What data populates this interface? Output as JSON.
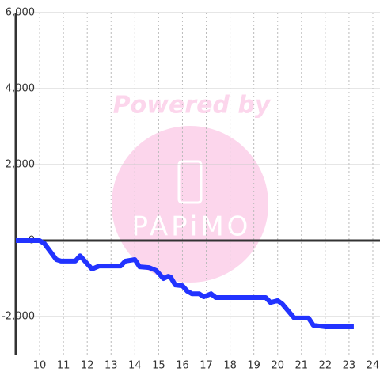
{
  "chart_data": {
    "type": "line",
    "watermark": [
      "Powered by",
      "PAPiMO"
    ],
    "x": [
      9,
      10.0,
      10.2,
      10.7,
      10.9,
      11.5,
      11.7,
      12.2,
      12.5,
      13.4,
      13.6,
      14.0,
      14.2,
      14.6,
      14.9,
      15.2,
      15.4,
      15.5,
      15.7,
      16.0,
      16.2,
      16.4,
      16.7,
      16.9,
      17.2,
      17.4,
      19.5,
      19.7,
      20.0,
      20.2,
      20.7,
      21.3,
      21.5,
      22.0,
      23.2
    ],
    "series": [
      {
        "color": "#2233ff",
        "values": [
          0,
          0,
          -80,
          -500,
          -540,
          -540,
          -400,
          -750,
          -670,
          -670,
          -540,
          -500,
          -690,
          -710,
          -790,
          -1000,
          -940,
          -960,
          -1170,
          -1190,
          -1330,
          -1400,
          -1400,
          -1480,
          -1400,
          -1500,
          -1500,
          -1630,
          -1580,
          -1670,
          -2040,
          -2040,
          -2230,
          -2270,
          -2270
        ]
      }
    ],
    "xlim": [
      9,
      24.3
    ],
    "xticks": [
      10,
      11,
      12,
      13,
      14,
      15,
      16,
      17,
      18,
      19,
      20,
      21,
      22,
      23,
      24
    ],
    "ylim": [
      -3000,
      6000
    ],
    "yticks": [
      {
        "value": -2000,
        "label": "-2,000"
      },
      0,
      {
        "value": 2000,
        "label": "2,000"
      },
      {
        "value": 4000,
        "label": "4,000"
      },
      {
        "value": 6000,
        "label": "6,000"
      }
    ],
    "grid": true
  }
}
